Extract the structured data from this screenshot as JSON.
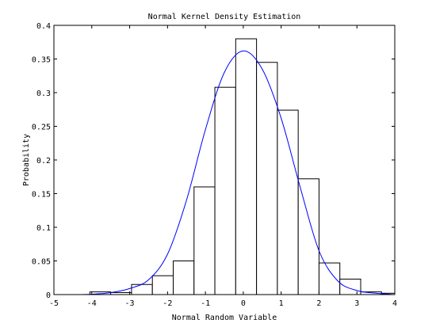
{
  "chart_data": {
    "type": "bar",
    "title": "Normal Kernel Density Estimation",
    "xlabel": "Normal Random Variable",
    "ylabel": "Probability",
    "xlim": [
      -5,
      4
    ],
    "ylim": [
      0,
      0.4
    ],
    "xticks": [
      -5,
      -4,
      -3,
      -2,
      -1,
      0,
      1,
      2,
      3,
      4
    ],
    "xtick_labels": [
      "-5",
      "-4",
      "-3",
      "-2",
      "-1",
      "0",
      "1",
      "2",
      "3",
      "4"
    ],
    "yticks": [
      0,
      0.05,
      0.1,
      0.15,
      0.2,
      0.25,
      0.3,
      0.35,
      0.4
    ],
    "ytick_labels": [
      "0",
      "0.05",
      "0.1",
      "0.15",
      "0.2",
      "0.25",
      "0.3",
      "0.35",
      "0.4"
    ],
    "grid": false,
    "histogram": {
      "bin_edges": [
        -4.05,
        -3.5,
        -2.95,
        -2.4,
        -1.85,
        -1.3,
        -0.75,
        -0.2,
        0.35,
        0.9,
        1.45,
        2.0,
        2.55,
        3.1,
        3.65,
        4.2
      ],
      "values": [
        0.004,
        0.003,
        0.015,
        0.028,
        0.05,
        0.16,
        0.308,
        0.38,
        0.345,
        0.274,
        0.172,
        0.047,
        0.023,
        0.004,
        0.002
      ],
      "edge_color": "#000000",
      "fill_color": "#ffffff"
    },
    "series": [
      {
        "type": "line",
        "x": [
          -4.5,
          -4.0,
          -3.5,
          -3.0,
          -2.5,
          -2.0,
          -1.5,
          -1.0,
          -0.5,
          0.0,
          0.5,
          1.0,
          1.5,
          2.0,
          2.5,
          3.0,
          3.5,
          4.0
        ],
        "values": [
          0.0,
          0.0005,
          0.003,
          0.009,
          0.022,
          0.06,
          0.14,
          0.245,
          0.33,
          0.362,
          0.335,
          0.262,
          0.16,
          0.065,
          0.02,
          0.006,
          0.002,
          0.0
        ],
        "color": "#0000ff"
      }
    ]
  }
}
